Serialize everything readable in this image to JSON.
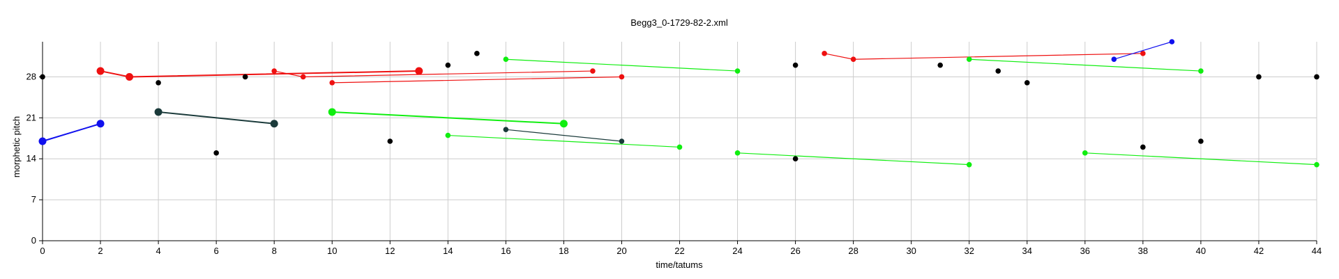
{
  "chart_data": {
    "type": "scatter",
    "title": "Begg3_0-1729-82-2.xml",
    "xlabel": "time/tatums",
    "ylabel": "morphetic pitch",
    "xlim": [
      0,
      44
    ],
    "ylim": [
      0,
      34
    ],
    "xticks": [
      0,
      2,
      4,
      6,
      8,
      10,
      12,
      14,
      16,
      18,
      20,
      22,
      24,
      26,
      28,
      30,
      32,
      34,
      36,
      38,
      40,
      42,
      44
    ],
    "yticks": [
      0,
      7,
      14,
      21,
      28
    ],
    "grid": true,
    "colors": {
      "blue": "#1010ee",
      "red": "#ee1010",
      "green": "#10ee10",
      "dark": "#1a3a3a",
      "black": "#000000"
    },
    "series": [
      {
        "color": "blue",
        "big": true,
        "points": [
          [
            0,
            17
          ],
          [
            2,
            20
          ]
        ]
      },
      {
        "color": "red",
        "big": true,
        "points": [
          [
            2,
            29
          ],
          [
            3,
            28
          ],
          [
            13,
            29
          ]
        ]
      },
      {
        "color": "dark",
        "big": true,
        "points": [
          [
            4,
            22
          ],
          [
            8,
            20
          ]
        ]
      },
      {
        "color": "green",
        "big": true,
        "points": [
          [
            10,
            22
          ],
          [
            18,
            20
          ]
        ]
      },
      {
        "color": "red",
        "big": false,
        "points": [
          [
            8,
            29
          ],
          [
            9,
            28
          ],
          [
            19,
            29
          ]
        ]
      },
      {
        "color": "red",
        "big": false,
        "points": [
          [
            10,
            27
          ],
          [
            20,
            28
          ]
        ]
      },
      {
        "color": "green",
        "big": false,
        "points": [
          [
            16,
            31
          ],
          [
            24,
            29
          ]
        ]
      },
      {
        "color": "green",
        "big": false,
        "points": [
          [
            14,
            18
          ],
          [
            22,
            16
          ]
        ]
      },
      {
        "color": "dark",
        "big": false,
        "points": [
          [
            16,
            19
          ],
          [
            20,
            17
          ]
        ]
      },
      {
        "color": "green",
        "big": false,
        "points": [
          [
            24,
            15
          ],
          [
            32,
            13
          ]
        ]
      },
      {
        "color": "red",
        "big": false,
        "points": [
          [
            27,
            32
          ],
          [
            28,
            31
          ],
          [
            38,
            32
          ]
        ]
      },
      {
        "color": "green",
        "big": false,
        "points": [
          [
            32,
            31
          ],
          [
            40,
            29
          ]
        ]
      },
      {
        "color": "blue",
        "big": false,
        "points": [
          [
            37,
            31
          ],
          [
            39,
            34
          ]
        ]
      },
      {
        "color": "green",
        "big": false,
        "points": [
          [
            36,
            15
          ],
          [
            44,
            13
          ]
        ]
      },
      {
        "color": "black",
        "big": false,
        "points": [
          [
            0,
            28
          ]
        ]
      },
      {
        "color": "black",
        "big": false,
        "points": [
          [
            4,
            27
          ]
        ]
      },
      {
        "color": "black",
        "big": false,
        "points": [
          [
            6,
            15
          ]
        ]
      },
      {
        "color": "black",
        "big": false,
        "points": [
          [
            7,
            28
          ]
        ]
      },
      {
        "color": "black",
        "big": false,
        "points": [
          [
            12,
            17
          ]
        ]
      },
      {
        "color": "black",
        "big": false,
        "points": [
          [
            14,
            30
          ]
        ]
      },
      {
        "color": "black",
        "big": false,
        "points": [
          [
            15,
            32
          ]
        ]
      },
      {
        "color": "black",
        "big": false,
        "points": [
          [
            26,
            30
          ]
        ]
      },
      {
        "color": "black",
        "big": false,
        "points": [
          [
            26,
            14
          ]
        ]
      },
      {
        "color": "black",
        "big": false,
        "points": [
          [
            31,
            30
          ]
        ]
      },
      {
        "color": "black",
        "big": false,
        "points": [
          [
            33,
            29
          ]
        ]
      },
      {
        "color": "black",
        "big": false,
        "points": [
          [
            34,
            27
          ]
        ]
      },
      {
        "color": "black",
        "big": false,
        "points": [
          [
            38,
            16
          ]
        ]
      },
      {
        "color": "black",
        "big": false,
        "points": [
          [
            40,
            17
          ]
        ]
      },
      {
        "color": "black",
        "big": false,
        "points": [
          [
            42,
            28
          ]
        ]
      },
      {
        "color": "black",
        "big": false,
        "points": [
          [
            44,
            28
          ]
        ]
      }
    ]
  }
}
